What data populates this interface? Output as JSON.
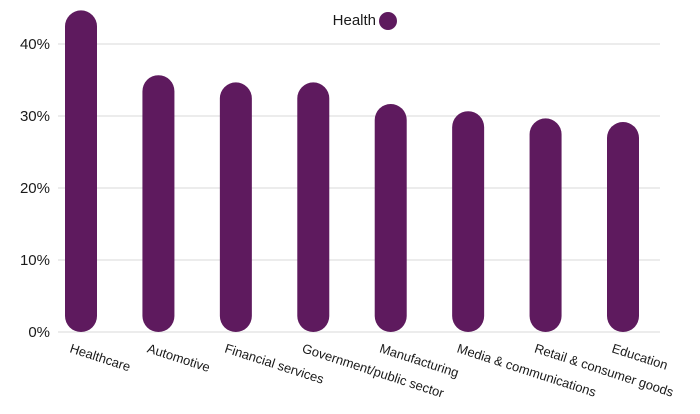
{
  "chart_data": {
    "type": "bar",
    "title": "",
    "xlabel": "",
    "ylabel": "",
    "categories": [
      "Healthcare",
      "Automotive",
      "Financial services",
      "Government/public sector",
      "Manufacturing",
      "Media & communications",
      "Retail & consumer goods",
      "Education"
    ],
    "series": [
      {
        "name": "Health",
        "color": "#5e1a5e",
        "values": [
          44,
          35,
          34,
          34,
          31,
          30,
          29,
          28.5
        ]
      }
    ],
    "ylim": [
      0,
      40
    ],
    "yticks": [
      0,
      10,
      20,
      30,
      40
    ],
    "ytick_labels": [
      "0%",
      "10%",
      "20%",
      "30%",
      "40%"
    ],
    "grid": true,
    "legend": {
      "position": "top-center",
      "marker": "circle"
    }
  }
}
